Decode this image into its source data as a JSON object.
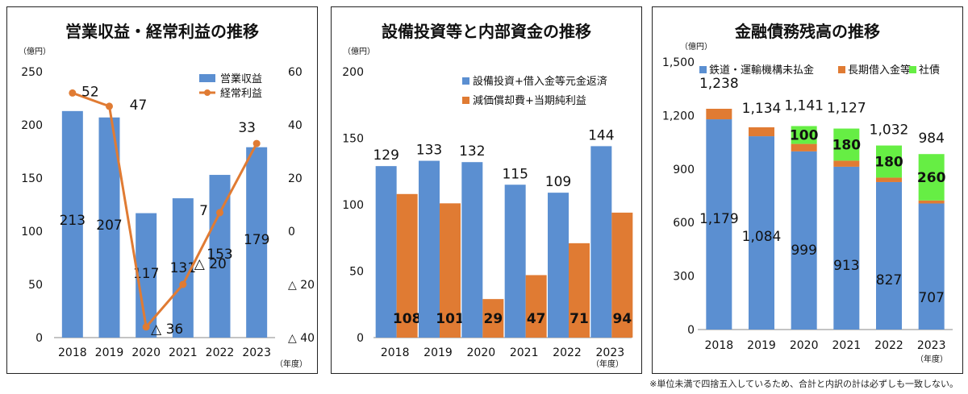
{
  "footnote": "※単位未満で四捨五入しているため、合計と内訳の計は必ずしも一致しない。",
  "chart_data": [
    {
      "type": "bar",
      "title": "営業収益・経常利益の推移",
      "unit_left": "（億円）",
      "unit_x": "（年度）",
      "categories": [
        "2018",
        "2019",
        "2020",
        "2021",
        "2022",
        "2023"
      ],
      "ylim_left": [
        0,
        250
      ],
      "yticks_left": [
        0,
        50,
        100,
        150,
        200,
        250
      ],
      "ylim_right": [
        -40,
        60
      ],
      "yticks_right": [
        60,
        40,
        20,
        0,
        -20,
        -40
      ],
      "yticks_right_labels": [
        "60",
        "40",
        "20",
        "0",
        "△ 20",
        "△ 40"
      ],
      "legend": "top-right",
      "series": [
        {
          "name": "営業収益",
          "type": "bar",
          "axis": "left",
          "color": "#5b8fd1",
          "values": [
            213,
            207,
            117,
            131,
            153,
            179
          ],
          "labels": [
            "213",
            "207",
            "117",
            "131",
            "153",
            "179"
          ]
        },
        {
          "name": "経常利益",
          "type": "line",
          "axis": "right",
          "color": "#e07b33",
          "values": [
            52,
            47,
            -36,
            -20,
            7,
            33
          ],
          "labels": [
            "52",
            "47",
            "△ 36",
            "△ 20",
            "7",
            "33"
          ]
        }
      ]
    },
    {
      "type": "bar",
      "title": "設備投資等と内部資金の推移",
      "unit_left": "（億円）",
      "unit_x": "（年度）",
      "categories": [
        "2018",
        "2019",
        "2020",
        "2021",
        "2022",
        "2023"
      ],
      "ylim": [
        0,
        200
      ],
      "yticks": [
        0,
        50,
        100,
        150,
        200
      ],
      "legend": "top-right",
      "series": [
        {
          "name": "設備投資+借入金等元金返済",
          "color": "#5b8fd1",
          "values": [
            129,
            133,
            132,
            115,
            109,
            144
          ]
        },
        {
          "name": "減価償却費+当期純利益",
          "color": "#e07b33",
          "values": [
            108,
            101,
            29,
            47,
            71,
            94
          ]
        }
      ]
    },
    {
      "type": "bar",
      "stacked": true,
      "title": "金融債務残高の推移",
      "unit_left": "（億円）",
      "unit_x": "（年度）",
      "categories": [
        "2018",
        "2019",
        "2020",
        "2021",
        "2022",
        "2023"
      ],
      "ylim": [
        0,
        1500
      ],
      "yticks": [
        0,
        300,
        600,
        900,
        1200,
        1500
      ],
      "yticks_labels": [
        "0",
        "300",
        "600",
        "900",
        "1,200",
        "1,500"
      ],
      "legend": "top",
      "totals": [
        1238,
        1134,
        1141,
        1127,
        1032,
        984
      ],
      "totals_labels": [
        "1,238",
        "1,134",
        "1,141",
        "1,127",
        "1,032",
        "984"
      ],
      "series": [
        {
          "name": "鉄道・運輸機構未払金",
          "color": "#5b8fd1",
          "values": [
            1179,
            1084,
            999,
            913,
            827,
            707
          ],
          "labels": [
            "1,179",
            "1,084",
            "999",
            "913",
            "827",
            "707"
          ]
        },
        {
          "name": "長期借入金等",
          "color": "#e07b33",
          "values": [
            59,
            50,
            42,
            34,
            25,
            17
          ]
        },
        {
          "name": "社債",
          "color": "#66ee44",
          "values": [
            0,
            0,
            100,
            180,
            180,
            260
          ],
          "labels": [
            "",
            "",
            "100",
            "180",
            "180",
            "260"
          ]
        }
      ]
    }
  ]
}
